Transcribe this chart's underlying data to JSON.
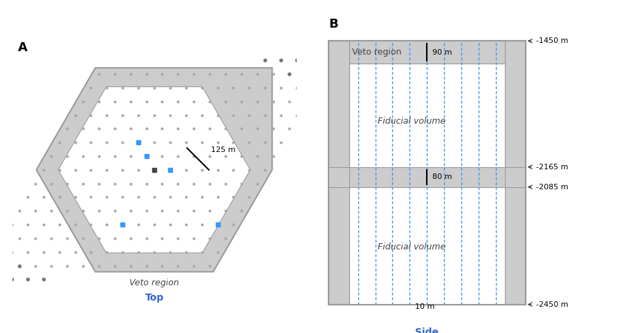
{
  "fig_width": 8.92,
  "fig_height": 4.82,
  "bg_color": "#ffffff",
  "gray_veto": "#cccccc",
  "blue_dot_color": "#3399ff",
  "dark_dot_color": "#555555",
  "label_A": "A",
  "label_B": "B",
  "top_label": "Top",
  "side_label": "Side",
  "veto_label_top": "Veto region",
  "veto_label_side": "Veto region",
  "fiducial_upper": "Fiducial volume",
  "fiducial_lower": "Fiducial volume",
  "dist_125": "125 m",
  "dist_90": "90 m",
  "dist_80": "80 m",
  "dist_10": "10 m",
  "depth_1450": "-1450 m",
  "depth_2085": "-2085 m",
  "depth_2165": "-2165 m",
  "depth_2450": "-2450 m",
  "dashed_line_color": "#3399ff",
  "text_color": "#444444",
  "hex_veto_color": "#cccccc"
}
